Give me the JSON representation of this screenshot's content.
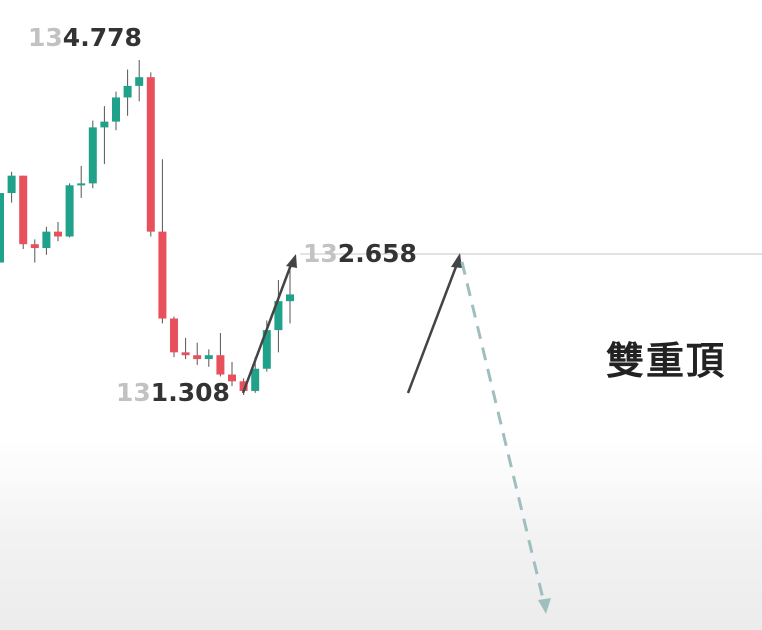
{
  "colors": {
    "bullish": "#1fa18a",
    "bearish": "#e8505b",
    "wick": "#555555",
    "arrow": "#444444",
    "projection": "#9fbfbf",
    "resistance_line": "#e3e3e3"
  },
  "labels": {
    "high_prefix": "13",
    "high_rest": "4.778",
    "neck_prefix": "13",
    "neck_rest": "2.658",
    "low_prefix": "13",
    "low_rest": "1.308",
    "pattern_title": "雙重頂"
  },
  "chart_data": {
    "type": "candlestick",
    "title": "雙重頂",
    "annotations": [
      {
        "label": "134.778",
        "role": "high"
      },
      {
        "label": "132.658",
        "role": "neckline-retest"
      },
      {
        "label": "131.308",
        "role": "low"
      }
    ],
    "ylim": [
      130.8,
      135.0
    ],
    "resistance_level": 132.658,
    "candles": [
      {
        "o": 132.68,
        "h": 133.4,
        "l": 132.68,
        "c": 133.4
      },
      {
        "o": 133.4,
        "h": 133.62,
        "l": 133.3,
        "c": 133.58
      },
      {
        "o": 133.58,
        "h": 133.58,
        "l": 132.82,
        "c": 132.87
      },
      {
        "o": 132.87,
        "h": 132.92,
        "l": 132.68,
        "c": 132.83
      },
      {
        "o": 132.83,
        "h": 133.05,
        "l": 132.76,
        "c": 133.0
      },
      {
        "o": 133.0,
        "h": 133.1,
        "l": 132.9,
        "c": 132.95
      },
      {
        "o": 132.95,
        "h": 133.5,
        "l": 132.94,
        "c": 133.48
      },
      {
        "o": 133.48,
        "h": 133.68,
        "l": 133.35,
        "c": 133.5
      },
      {
        "o": 133.5,
        "h": 134.15,
        "l": 133.45,
        "c": 134.08
      },
      {
        "o": 134.08,
        "h": 134.3,
        "l": 133.7,
        "c": 134.14
      },
      {
        "o": 134.14,
        "h": 134.45,
        "l": 134.05,
        "c": 134.39
      },
      {
        "o": 134.39,
        "h": 134.68,
        "l": 134.2,
        "c": 134.51
      },
      {
        "o": 134.51,
        "h": 134.778,
        "l": 134.35,
        "c": 134.6
      },
      {
        "o": 134.6,
        "h": 134.65,
        "l": 132.95,
        "c": 133.0
      },
      {
        "o": 133.0,
        "h": 133.75,
        "l": 132.05,
        "c": 132.1
      },
      {
        "o": 132.1,
        "h": 132.12,
        "l": 131.7,
        "c": 131.75
      },
      {
        "o": 131.75,
        "h": 131.9,
        "l": 131.68,
        "c": 131.72
      },
      {
        "o": 131.72,
        "h": 131.85,
        "l": 131.62,
        "c": 131.68
      },
      {
        "o": 131.68,
        "h": 131.78,
        "l": 131.6,
        "c": 131.72
      },
      {
        "o": 131.72,
        "h": 131.95,
        "l": 131.5,
        "c": 131.52
      },
      {
        "o": 131.52,
        "h": 131.65,
        "l": 131.4,
        "c": 131.45
      },
      {
        "o": 131.45,
        "h": 131.48,
        "l": 131.308,
        "c": 131.35
      },
      {
        "o": 131.35,
        "h": 131.7,
        "l": 131.33,
        "c": 131.58
      },
      {
        "o": 131.58,
        "h": 132.08,
        "l": 131.55,
        "c": 131.98
      },
      {
        "o": 131.98,
        "h": 132.5,
        "l": 131.75,
        "c": 132.28
      },
      {
        "o": 132.28,
        "h": 132.6,
        "l": 132.05,
        "c": 132.35
      }
    ]
  }
}
